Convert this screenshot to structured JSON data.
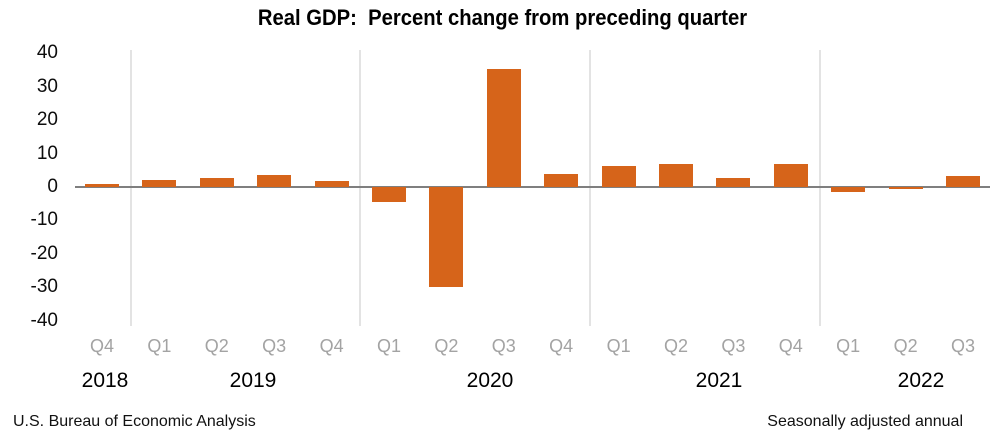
{
  "title": "Real GDP:  Percent change from preceding quarter",
  "footer": {
    "source": "U.S. Bureau of Economic Analysis",
    "note": "Seasonally adjusted annual"
  },
  "chart_data": {
    "type": "bar",
    "title": "Real GDP:  Percent change from preceding quarter",
    "unit": "percent",
    "categories": [
      "2018 Q4",
      "2019 Q1",
      "2019 Q2",
      "2019 Q3",
      "2019 Q4",
      "2020 Q1",
      "2020 Q2",
      "2020 Q3",
      "2020 Q4",
      "2021 Q1",
      "2021 Q2",
      "2021 Q3",
      "2021 Q4",
      "2022 Q1",
      "2022 Q2",
      "2022 Q3"
    ],
    "x_tick_labels": [
      "Q4",
      "Q1",
      "Q2",
      "Q3",
      "Q4",
      "Q1",
      "Q2",
      "Q3",
      "Q4",
      "Q1",
      "Q2",
      "Q3",
      "Q4",
      "Q1",
      "Q2",
      "Q3"
    ],
    "year_labels": [
      "2018",
      "2019",
      "2020",
      "2021",
      "2022"
    ],
    "values": [
      0.9,
      2.2,
      2.7,
      3.6,
      1.8,
      -4.6,
      -29.9,
      35.3,
      3.9,
      6.3,
      7.0,
      2.7,
      7.0,
      -1.6,
      -0.6,
      3.2
    ],
    "y_ticks": [
      40,
      30,
      20,
      10,
      0,
      -10,
      -20,
      -30,
      -40
    ],
    "ylim": [
      -40,
      40
    ],
    "xlabel": "",
    "ylabel": "",
    "legend": "none",
    "grid": "vertical year-divider lines only",
    "bar_color": "#d6641a",
    "zero_line_color": "#7f7f7f",
    "gridline_color": "#e3e3e3",
    "quarter_label_color": "#a3a3a3"
  }
}
